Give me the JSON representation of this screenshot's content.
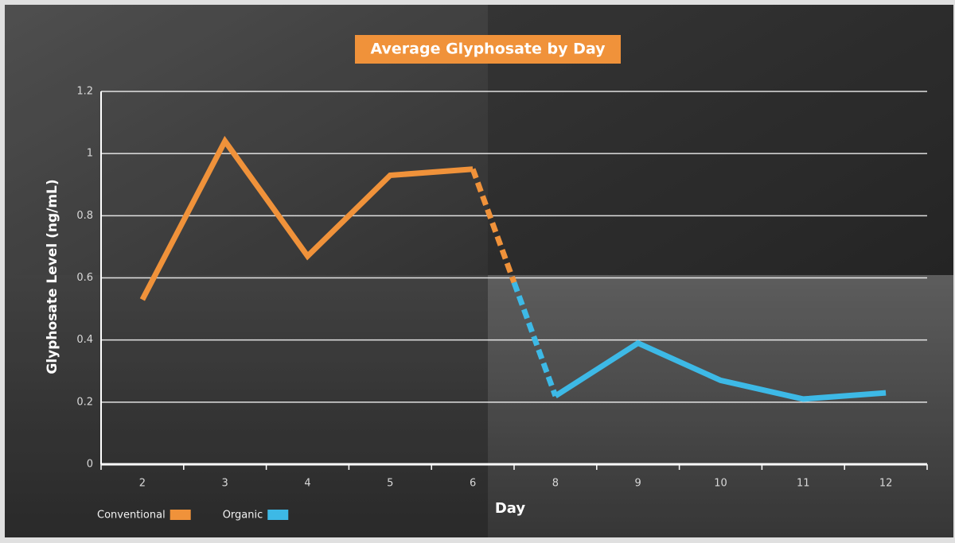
{
  "chart_data": {
    "type": "line",
    "title": "Average Glyphosate by Day",
    "x_label": "Day",
    "y_label": "Glyphosate Level (ng/mL)",
    "categories": [
      "2",
      "3",
      "4",
      "5",
      "6",
      "8",
      "9",
      "10",
      "11",
      "12"
    ],
    "series": [
      {
        "name": "Conventional",
        "color": "#f0923a",
        "values": [
          0.53,
          1.04,
          0.67,
          0.93,
          0.95,
          null,
          null,
          null,
          null,
          null
        ]
      },
      {
        "name": "Organic",
        "color": "#3db9e6",
        "values": [
          null,
          null,
          null,
          null,
          null,
          0.22,
          0.39,
          0.27,
          0.21,
          0.23
        ]
      }
    ],
    "ylim": [
      0,
      1.2
    ],
    "yticks": [
      0,
      0.2,
      0.4,
      0.6,
      0.8,
      1,
      1.2
    ],
    "grid": true
  }
}
